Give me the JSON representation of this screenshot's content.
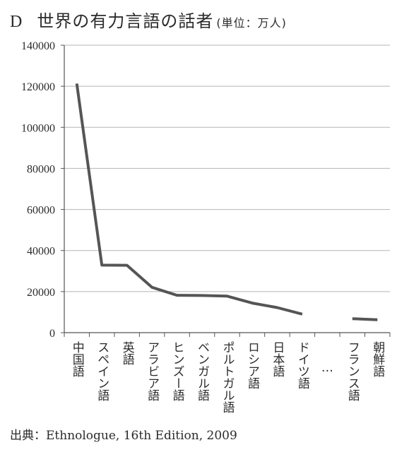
{
  "chart_data": {
    "type": "line",
    "title_letter": "D",
    "title": "世界の有力言語の話者",
    "unit_label": "(単位：万人)",
    "categories": [
      "中国語",
      "スペイン語",
      "英語",
      "アラビア語",
      "ヒンズー語",
      "ベンガル語",
      "ポルトガル語",
      "ロシア語",
      "日本語",
      "ドイツ語",
      "…",
      "フランス語",
      "朝鮮語"
    ],
    "series": [
      {
        "values": [
          121300,
          32900,
          32800,
          22100,
          18200,
          18100,
          17800,
          14400,
          12200,
          9000,
          null,
          6800,
          6300
        ]
      }
    ],
    "yticks": [
      "0",
      "20000",
      "40000",
      "60000",
      "80000",
      "100000",
      "120000",
      "140000"
    ],
    "ylim": [
      0,
      140000
    ],
    "grid": "horizontal",
    "line_color": "#555555",
    "source_label": "出典：",
    "source_text": "Ethnologue, 16th Edition, 2009"
  }
}
